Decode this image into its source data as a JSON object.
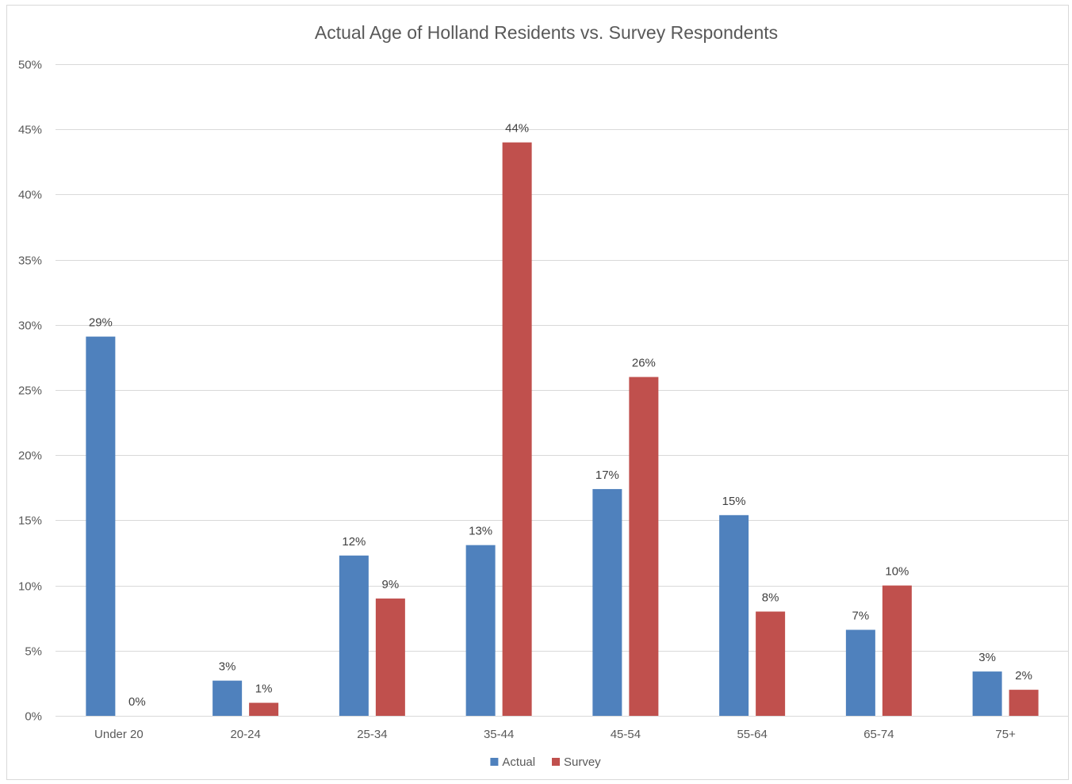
{
  "chart_data": {
    "type": "bar",
    "title": "Actual Age of Holland Residents vs. Survey Respondents",
    "xlabel": "",
    "ylabel": "",
    "categories": [
      "Under 20",
      "20-24",
      "25-34",
      "35-44",
      "45-54",
      "55-64",
      "65-74",
      "75+"
    ],
    "series": [
      {
        "name": "Actual",
        "color": "#4f81bd",
        "values": [
          29.1,
          2.7,
          12.3,
          13.1,
          17.4,
          15.4,
          6.6,
          3.4
        ],
        "labels": [
          "29%",
          "3%",
          "12%",
          "13%",
          "17%",
          "15%",
          "7%",
          "3%"
        ]
      },
      {
        "name": "Survey",
        "color": "#c0504d",
        "values": [
          0,
          1,
          9,
          44,
          26,
          8,
          10,
          2
        ],
        "labels": [
          "0%",
          "1%",
          "9%",
          "44%",
          "26%",
          "8%",
          "10%",
          "2%"
        ]
      }
    ],
    "ylim": [
      0,
      50
    ],
    "yticks": [
      0,
      5,
      10,
      15,
      20,
      25,
      30,
      35,
      40,
      45,
      50
    ],
    "ytick_labels": [
      "0%",
      "5%",
      "10%",
      "15%",
      "20%",
      "25%",
      "30%",
      "35%",
      "40%",
      "45%",
      "50%"
    ],
    "grid": true,
    "legend": "bottom",
    "gridline_color": "#d9d9d9",
    "text_color": "#595959"
  }
}
